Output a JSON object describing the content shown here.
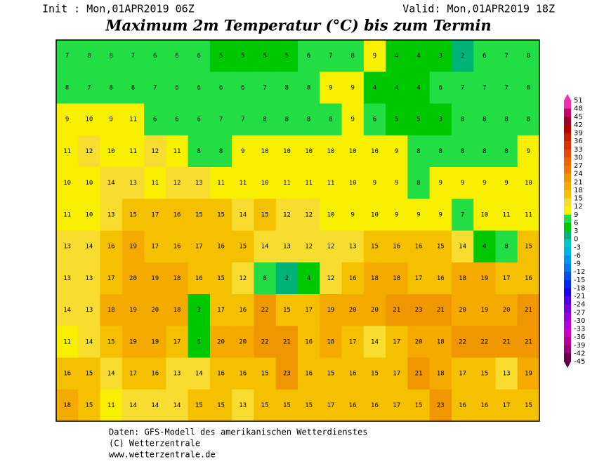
{
  "header": {
    "init": "Init : Mon,01APR2019 06Z",
    "valid": "Valid: Mon,01APR2019 18Z",
    "title": "Maximum 2m Temperatur (°C) bis zum Termin"
  },
  "map": {
    "values": [
      [
        7,
        8,
        8,
        7,
        6,
        6,
        6,
        5,
        5,
        5,
        5,
        6,
        7,
        8,
        9,
        4,
        4,
        3,
        2,
        6,
        7,
        8
      ],
      [
        8,
        7,
        8,
        8,
        7,
        6,
        6,
        6,
        6,
        7,
        8,
        8,
        9,
        9,
        4,
        4,
        4,
        6,
        7,
        7,
        7,
        8
      ],
      [
        9,
        10,
        9,
        11,
        6,
        6,
        6,
        7,
        7,
        8,
        8,
        8,
        8,
        9,
        6,
        5,
        5,
        3,
        8,
        8,
        8,
        8
      ],
      [
        11,
        12,
        10,
        11,
        12,
        11,
        8,
        8,
        9,
        10,
        10,
        10,
        10,
        10,
        10,
        9,
        8,
        8,
        8,
        8,
        8,
        9
      ],
      [
        10,
        10,
        14,
        13,
        11,
        12,
        13,
        11,
        11,
        10,
        11,
        11,
        11,
        10,
        9,
        9,
        8,
        9,
        9,
        9,
        9,
        10
      ],
      [
        11,
        10,
        13,
        15,
        17,
        16,
        15,
        15,
        14,
        15,
        12,
        12,
        10,
        9,
        10,
        9,
        9,
        9,
        7,
        10,
        11,
        11
      ],
      [
        13,
        14,
        16,
        19,
        17,
        16,
        17,
        16,
        15,
        14,
        13,
        12,
        12,
        13,
        15,
        16,
        16,
        15,
        14,
        4,
        8,
        15
      ],
      [
        13,
        13,
        17,
        20,
        19,
        18,
        16,
        15,
        12,
        8,
        2,
        4,
        12,
        16,
        18,
        18,
        17,
        16,
        18,
        19,
        17,
        16
      ],
      [
        14,
        13,
        18,
        19,
        20,
        18,
        3,
        17,
        16,
        22,
        15,
        17,
        19,
        20,
        20,
        21,
        23,
        21,
        20,
        19,
        20,
        21
      ],
      [
        11,
        14,
        15,
        19,
        19,
        17,
        5,
        20,
        20,
        22,
        21,
        16,
        18,
        17,
        14,
        17,
        20,
        18,
        22,
        22,
        21,
        21
      ],
      [
        16,
        15,
        14,
        17,
        16,
        13,
        14,
        16,
        16,
        15,
        23,
        16,
        15,
        16,
        15,
        17,
        21,
        18,
        17,
        15,
        13,
        19
      ],
      [
        18,
        15,
        11,
        14,
        14,
        14,
        15,
        15,
        13,
        15,
        15,
        15,
        17,
        16,
        16,
        17,
        15,
        23,
        16,
        16,
        17,
        15
      ]
    ]
  },
  "colorbar": {
    "levels": [
      51,
      48,
      45,
      42,
      39,
      36,
      33,
      30,
      27,
      24,
      21,
      18,
      15,
      12,
      9,
      6,
      3,
      0,
      -3,
      -6,
      -9,
      -12,
      -15,
      -18,
      -21,
      -24,
      -27,
      -30,
      -33,
      -36,
      -39,
      -42,
      -45
    ],
    "colors": [
      "#f030b0",
      "#c8006e",
      "#a00028",
      "#b40000",
      "#c81e00",
      "#dc3200",
      "#e64b00",
      "#f06400",
      "#f07800",
      "#f09600",
      "#f5aa00",
      "#f5c000",
      "#f8dc30",
      "#f8f000",
      "#22dd44",
      "#00c800",
      "#00b478",
      "#00c8c8",
      "#00b4e6",
      "#0096f0",
      "#0078f0",
      "#0050f0",
      "#0028f0",
      "#1e00f0",
      "#5000e6",
      "#7800dc",
      "#9600dc",
      "#b400dc",
      "#c800c8",
      "#b4009a",
      "#960078",
      "#640050"
    ]
  },
  "footer": {
    "line1": "Daten: GFS-Modell des amerikanischen Wetterdienstes",
    "line2": "(C) Wetterzentrale",
    "line3": "www.wetterzentrale.de"
  }
}
